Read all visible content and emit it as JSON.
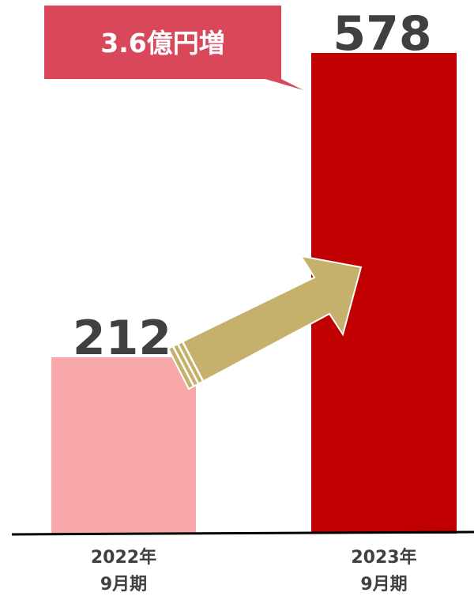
{
  "chart_data": {
    "type": "bar",
    "title": "",
    "xlabel": "",
    "ylabel": "",
    "categories": [
      {
        "line1": "2022年",
        "line2": "9月期"
      },
      {
        "line1": "2023年",
        "line2": "9月期"
      }
    ],
    "values": [
      212,
      578
    ],
    "value_labels": [
      "212",
      "578"
    ],
    "ylim": [
      0,
      578
    ],
    "grid": false,
    "legend": "none",
    "callout": {
      "text": "3.6億円増"
    }
  },
  "colors": {
    "bar_2022": "#f9a8a9",
    "bar_2023": "#c00000",
    "arrow_fill": "#c5b16c",
    "callout_fill": "#d9475a",
    "callout_text": "#ffffff",
    "label_text": "#404040",
    "axis_line": "#000000"
  },
  "icons": {
    "trend_arrow": "growth-arrow-icon"
  }
}
